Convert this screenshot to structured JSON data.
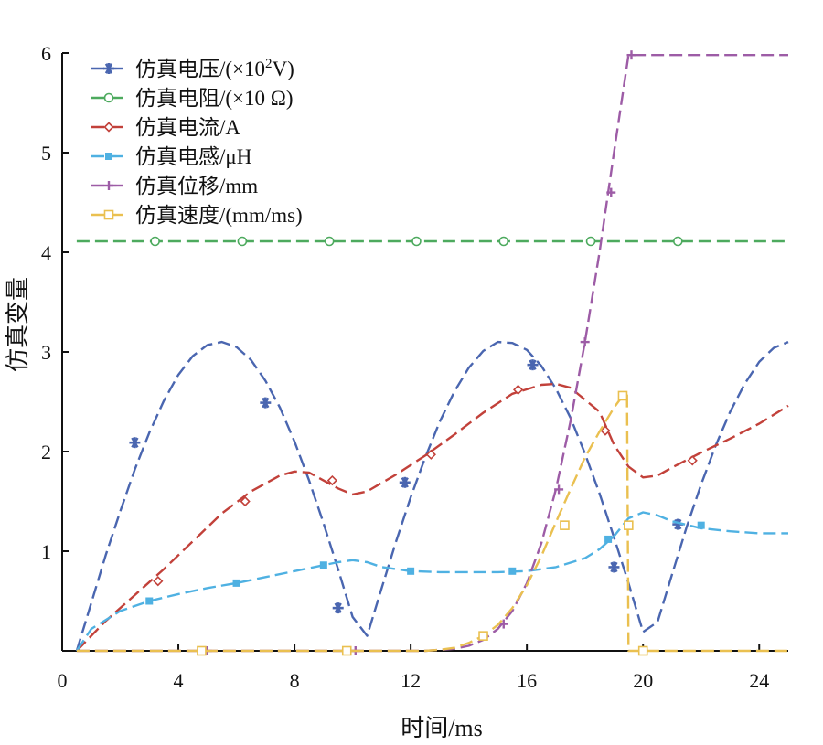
{
  "chart_data": {
    "type": "line",
    "title": "",
    "xlabel": "时间/ms",
    "ylabel": "仿真变量",
    "xlim": [
      0,
      25
    ],
    "ylim": [
      0,
      6
    ],
    "xticks": [
      "0",
      "4",
      "8",
      "12",
      "16",
      "20",
      "24"
    ],
    "yticks": [
      "1",
      "2",
      "3",
      "4",
      "5",
      "6"
    ],
    "grid": false,
    "legend_position": "top-left",
    "series": [
      {
        "name": "仿真电压/(×10²V)",
        "legend_main": "仿真电压/(×10",
        "legend_sup": "2",
        "legend_tail": "V)",
        "color": "#4a66b0",
        "marker": "asterisk",
        "x": [
          0.5,
          1.0,
          1.5,
          2.0,
          2.5,
          3.0,
          3.5,
          4.0,
          4.5,
          5.0,
          5.5,
          6.0,
          6.5,
          7.0,
          7.5,
          8.0,
          8.5,
          9.0,
          9.5,
          10.0,
          10.5,
          11.0,
          11.5,
          12.0,
          12.5,
          13.0,
          13.5,
          14.0,
          14.5,
          15.0,
          15.5,
          16.0,
          16.5,
          17.0,
          17.5,
          18.0,
          18.5,
          19.0,
          19.5,
          20.0,
          20.5,
          21.0,
          21.5,
          22.0,
          22.5,
          23.0,
          23.5,
          24.0,
          24.5,
          25.0
        ],
        "y": [
          0.0,
          0.48,
          0.96,
          1.4,
          1.82,
          2.19,
          2.51,
          2.77,
          2.96,
          3.07,
          3.1,
          3.05,
          2.92,
          2.71,
          2.44,
          2.1,
          1.71,
          1.28,
          0.82,
          0.34,
          0.15,
          0.63,
          1.1,
          1.54,
          1.94,
          2.3,
          2.6,
          2.84,
          3.01,
          3.1,
          3.09,
          3.02,
          2.86,
          2.63,
          2.34,
          1.98,
          1.58,
          1.14,
          0.68,
          0.19,
          0.29,
          0.77,
          1.24,
          1.67,
          2.06,
          2.4,
          2.68,
          2.9,
          3.04,
          3.1
        ],
        "marker_x": [
          2.5,
          7.0,
          9.5,
          11.8,
          16.2,
          19.0,
          21.2
        ],
        "marker_y": [
          2.09,
          2.49,
          0.43,
          1.69,
          2.87,
          0.84,
          1.27
        ]
      },
      {
        "name": "仿真电阻/(×10 Ω)",
        "color": "#4daa5e",
        "marker": "circle",
        "x": [
          0.5,
          25.0
        ],
        "y": [
          4.11,
          4.11
        ],
        "marker_x": [
          3.2,
          6.2,
          9.2,
          12.2,
          15.2,
          18.2,
          21.2
        ],
        "marker_y": [
          4.11,
          4.11,
          4.11,
          4.11,
          4.11,
          4.11,
          4.11
        ]
      },
      {
        "name": "仿真电流/A",
        "color": "#c2413a",
        "marker": "diamond",
        "x": [
          0.5,
          1.5,
          2.5,
          3.5,
          4.5,
          5.5,
          6.5,
          7.5,
          8.0,
          8.5,
          9.5,
          10.0,
          10.5,
          11.5,
          12.5,
          13.5,
          14.5,
          15.5,
          16.5,
          17.0,
          17.5,
          18.5,
          19.0,
          19.5,
          20.0,
          20.5,
          21.0,
          22.0,
          23.0,
          24.0,
          25.0
        ],
        "y": [
          0.0,
          0.3,
          0.56,
          0.82,
          1.1,
          1.38,
          1.6,
          1.76,
          1.8,
          1.79,
          1.63,
          1.57,
          1.6,
          1.77,
          1.96,
          2.17,
          2.39,
          2.58,
          2.67,
          2.68,
          2.64,
          2.4,
          2.07,
          1.85,
          1.74,
          1.76,
          1.84,
          1.99,
          2.13,
          2.28,
          2.46
        ],
        "marker_x": [
          3.3,
          6.3,
          9.3,
          12.7,
          15.7,
          18.7,
          21.7
        ],
        "marker_y": [
          0.7,
          1.5,
          1.71,
          1.97,
          2.62,
          2.21,
          1.91
        ]
      },
      {
        "name": "仿真电感/μH",
        "color": "#4fb1e2",
        "marker": "square-filled",
        "x": [
          0.5,
          1.0,
          2.0,
          3.0,
          4.0,
          5.0,
          6.0,
          7.0,
          8.0,
          9.0,
          9.5,
          10.0,
          10.5,
          11.0,
          12.0,
          13.0,
          14.0,
          15.0,
          16.0,
          17.0,
          18.0,
          18.5,
          19.0,
          19.5,
          20.0,
          20.5,
          21.0,
          22.0,
          23.0,
          24.0,
          25.0
        ],
        "y": [
          0.0,
          0.22,
          0.4,
          0.5,
          0.57,
          0.63,
          0.68,
          0.74,
          0.8,
          0.86,
          0.89,
          0.91,
          0.89,
          0.84,
          0.8,
          0.79,
          0.79,
          0.79,
          0.8,
          0.84,
          0.93,
          1.02,
          1.15,
          1.33,
          1.39,
          1.36,
          1.3,
          1.23,
          1.2,
          1.18,
          1.18
        ],
        "marker_x": [
          3.0,
          6.0,
          9.0,
          12.0,
          15.5,
          18.8,
          22.0
        ],
        "marker_y": [
          0.5,
          0.68,
          0.86,
          0.8,
          0.8,
          1.12,
          1.26
        ]
      },
      {
        "name": "仿真位移/mm",
        "color": "#9d5ca6",
        "marker": "plus",
        "x": [
          0.5,
          12.5,
          13.0,
          13.5,
          14.0,
          14.5,
          15.0,
          15.5,
          16.0,
          16.5,
          17.0,
          17.5,
          18.0,
          18.5,
          19.0,
          19.5,
          25.0
        ],
        "y": [
          0.0,
          0.0,
          0.01,
          0.02,
          0.05,
          0.11,
          0.22,
          0.4,
          0.68,
          1.08,
          1.62,
          2.3,
          3.1,
          4.0,
          5.0,
          5.98,
          5.98
        ],
        "marker_x": [
          5.0,
          10.1,
          15.2,
          17.1,
          18.0,
          18.9,
          19.6
        ],
        "marker_y": [
          0.0,
          0.0,
          0.27,
          1.62,
          3.1,
          4.6,
          5.98
        ]
      },
      {
        "name": "仿真速度/(mm/ms)",
        "color": "#eac050",
        "marker": "square-open",
        "x": [
          0.5,
          12.5,
          13.0,
          13.5,
          14.0,
          14.5,
          15.0,
          15.5,
          16.0,
          16.5,
          17.0,
          17.5,
          18.0,
          18.5,
          19.0,
          19.3,
          19.45,
          19.5,
          20.0,
          25.0
        ],
        "y": [
          0.0,
          0.0,
          0.01,
          0.03,
          0.08,
          0.15,
          0.26,
          0.43,
          0.66,
          0.95,
          1.29,
          1.62,
          1.94,
          2.2,
          2.44,
          2.56,
          2.58,
          0.0,
          0.0,
          0.0
        ],
        "marker_x": [
          4.8,
          9.8,
          14.5,
          17.3,
          19.3,
          19.5,
          20.0
        ],
        "marker_y": [
          0.0,
          0.0,
          0.15,
          1.26,
          2.56,
          1.26,
          0.0
        ]
      }
    ]
  }
}
